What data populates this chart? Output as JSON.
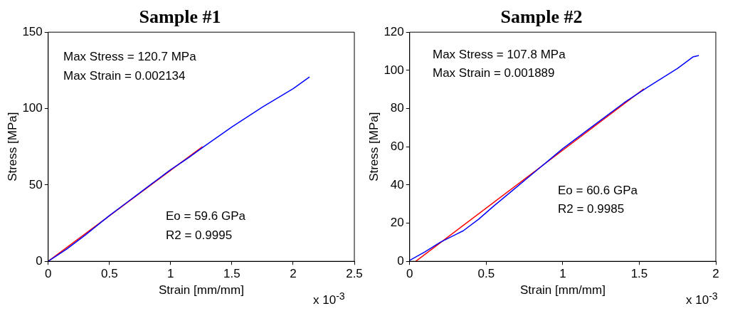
{
  "chart_data": [
    {
      "type": "line",
      "title": "Sample #1",
      "xlabel": "Strain [mm/mm]",
      "ylabel": "Stress [MPa]",
      "annotations": [
        "Max Stress = 120.7 MPa",
        "Max Strain = 0.002134",
        "Eo = 59.6 GPa",
        "R2 = 0.9995",
        "x 10$^{-3}$"
      ],
      "xlim": [
        0,
        2.5
      ],
      "xticks": [
        0,
        0.5,
        1,
        1.5,
        2,
        2.5
      ],
      "ylim": [
        0,
        150
      ],
      "yticks": [
        0,
        50,
        100,
        150
      ],
      "series": [
        {
          "color": "#0000ff",
          "x": [
            0,
            0.15,
            0.3,
            0.5,
            0.65,
            0.7,
            0.85,
            1.0,
            1.15,
            1.27,
            1.5,
            1.75,
            2.0,
            2.134
          ],
          "values": [
            0,
            8,
            17,
            30,
            39,
            42,
            51,
            60,
            68,
            75,
            88,
            101,
            113,
            120.7
          ]
        },
        {
          "color": "#ff0000",
          "x": [
            0,
            1.26
          ],
          "values": [
            0,
            75.1
          ]
        }
      ]
    },
    {
      "type": "line",
      "title": "Sample #2",
      "xlabel": "Strain [mm/mm]",
      "ylabel": "Stress [MPa]",
      "annotations": [
        "Max Stress = 107.8 MPa",
        "Max Strain = 0.001889",
        "Eo = 60.6 GPa",
        "R2 = 0.9985",
        "x 10$^{-3}$"
      ],
      "xlim": [
        0,
        2
      ],
      "xticks": [
        0,
        0.5,
        1,
        1.5,
        2
      ],
      "ylim": [
        0,
        120
      ],
      "yticks": [
        0,
        20,
        40,
        60,
        80,
        100,
        120
      ],
      "series": [
        {
          "color": "#0000ff",
          "x": [
            0,
            0.1,
            0.2,
            0.3,
            0.35,
            0.45,
            0.55,
            0.7,
            0.85,
            1.0,
            1.2,
            1.4,
            1.55,
            1.65,
            1.75,
            1.85,
            1.889
          ],
          "values": [
            0.5,
            5,
            10,
            14,
            16,
            22,
            29,
            39,
            49,
            59,
            71,
            83,
            91,
            96,
            101,
            107,
            107.8
          ]
        },
        {
          "color": "#ff0000",
          "x": [
            0.04,
            1.53
          ],
          "values": [
            0,
            90.3
          ]
        }
      ]
    }
  ]
}
